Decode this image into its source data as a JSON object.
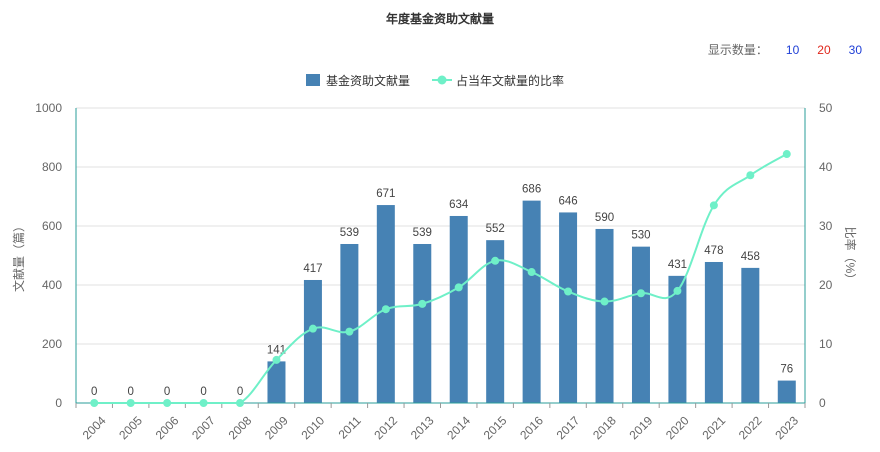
{
  "chart_data": {
    "type": "bar",
    "title": "年度基金资助文献量",
    "categories": [
      "2004",
      "2005",
      "2006",
      "2007",
      "2008",
      "2009",
      "2010",
      "2011",
      "2012",
      "2013",
      "2014",
      "2015",
      "2016",
      "2017",
      "2018",
      "2019",
      "2020",
      "2021",
      "2022",
      "2023"
    ],
    "series": [
      {
        "name": "基金资助文献量",
        "type": "bar",
        "axis": "left",
        "color": "#4682b4",
        "values": [
          0,
          0,
          0,
          0,
          0,
          141,
          417,
          539,
          671,
          539,
          634,
          552,
          686,
          646,
          590,
          530,
          431,
          478,
          458,
          76
        ],
        "show_labels": true
      },
      {
        "name": "占当年文献量的比率",
        "type": "line",
        "axis": "right",
        "color": "#6ff0c8",
        "values": [
          0,
          0,
          0,
          0,
          0,
          7.3,
          12.6,
          12.1,
          15.9,
          16.8,
          19.6,
          24.1,
          22.2,
          18.9,
          17.2,
          18.6,
          19.0,
          33.5,
          38.6,
          42.2
        ]
      }
    ],
    "ylabel": "文献量（篇）",
    "y2label": "比率（%）",
    "ylim": [
      0,
      1000
    ],
    "y2lim": [
      0,
      50
    ],
    "yticks": [
      0,
      200,
      400,
      600,
      800,
      1000
    ],
    "y2ticks": [
      0,
      10,
      20,
      30,
      40,
      50
    ],
    "grid": true,
    "legend": "top-center"
  },
  "controls": {
    "count_label": "显示数量：",
    "options": [
      {
        "label": "10",
        "color": "#1f3fd6"
      },
      {
        "label": "20",
        "color": "#e0271c"
      },
      {
        "label": "30",
        "color": "#1f3fd6"
      }
    ]
  },
  "colors": {
    "bar": "#4682b4",
    "line": "#6ff0c8",
    "axis": "#2a9d9a",
    "grid": "#e2e2e2"
  }
}
